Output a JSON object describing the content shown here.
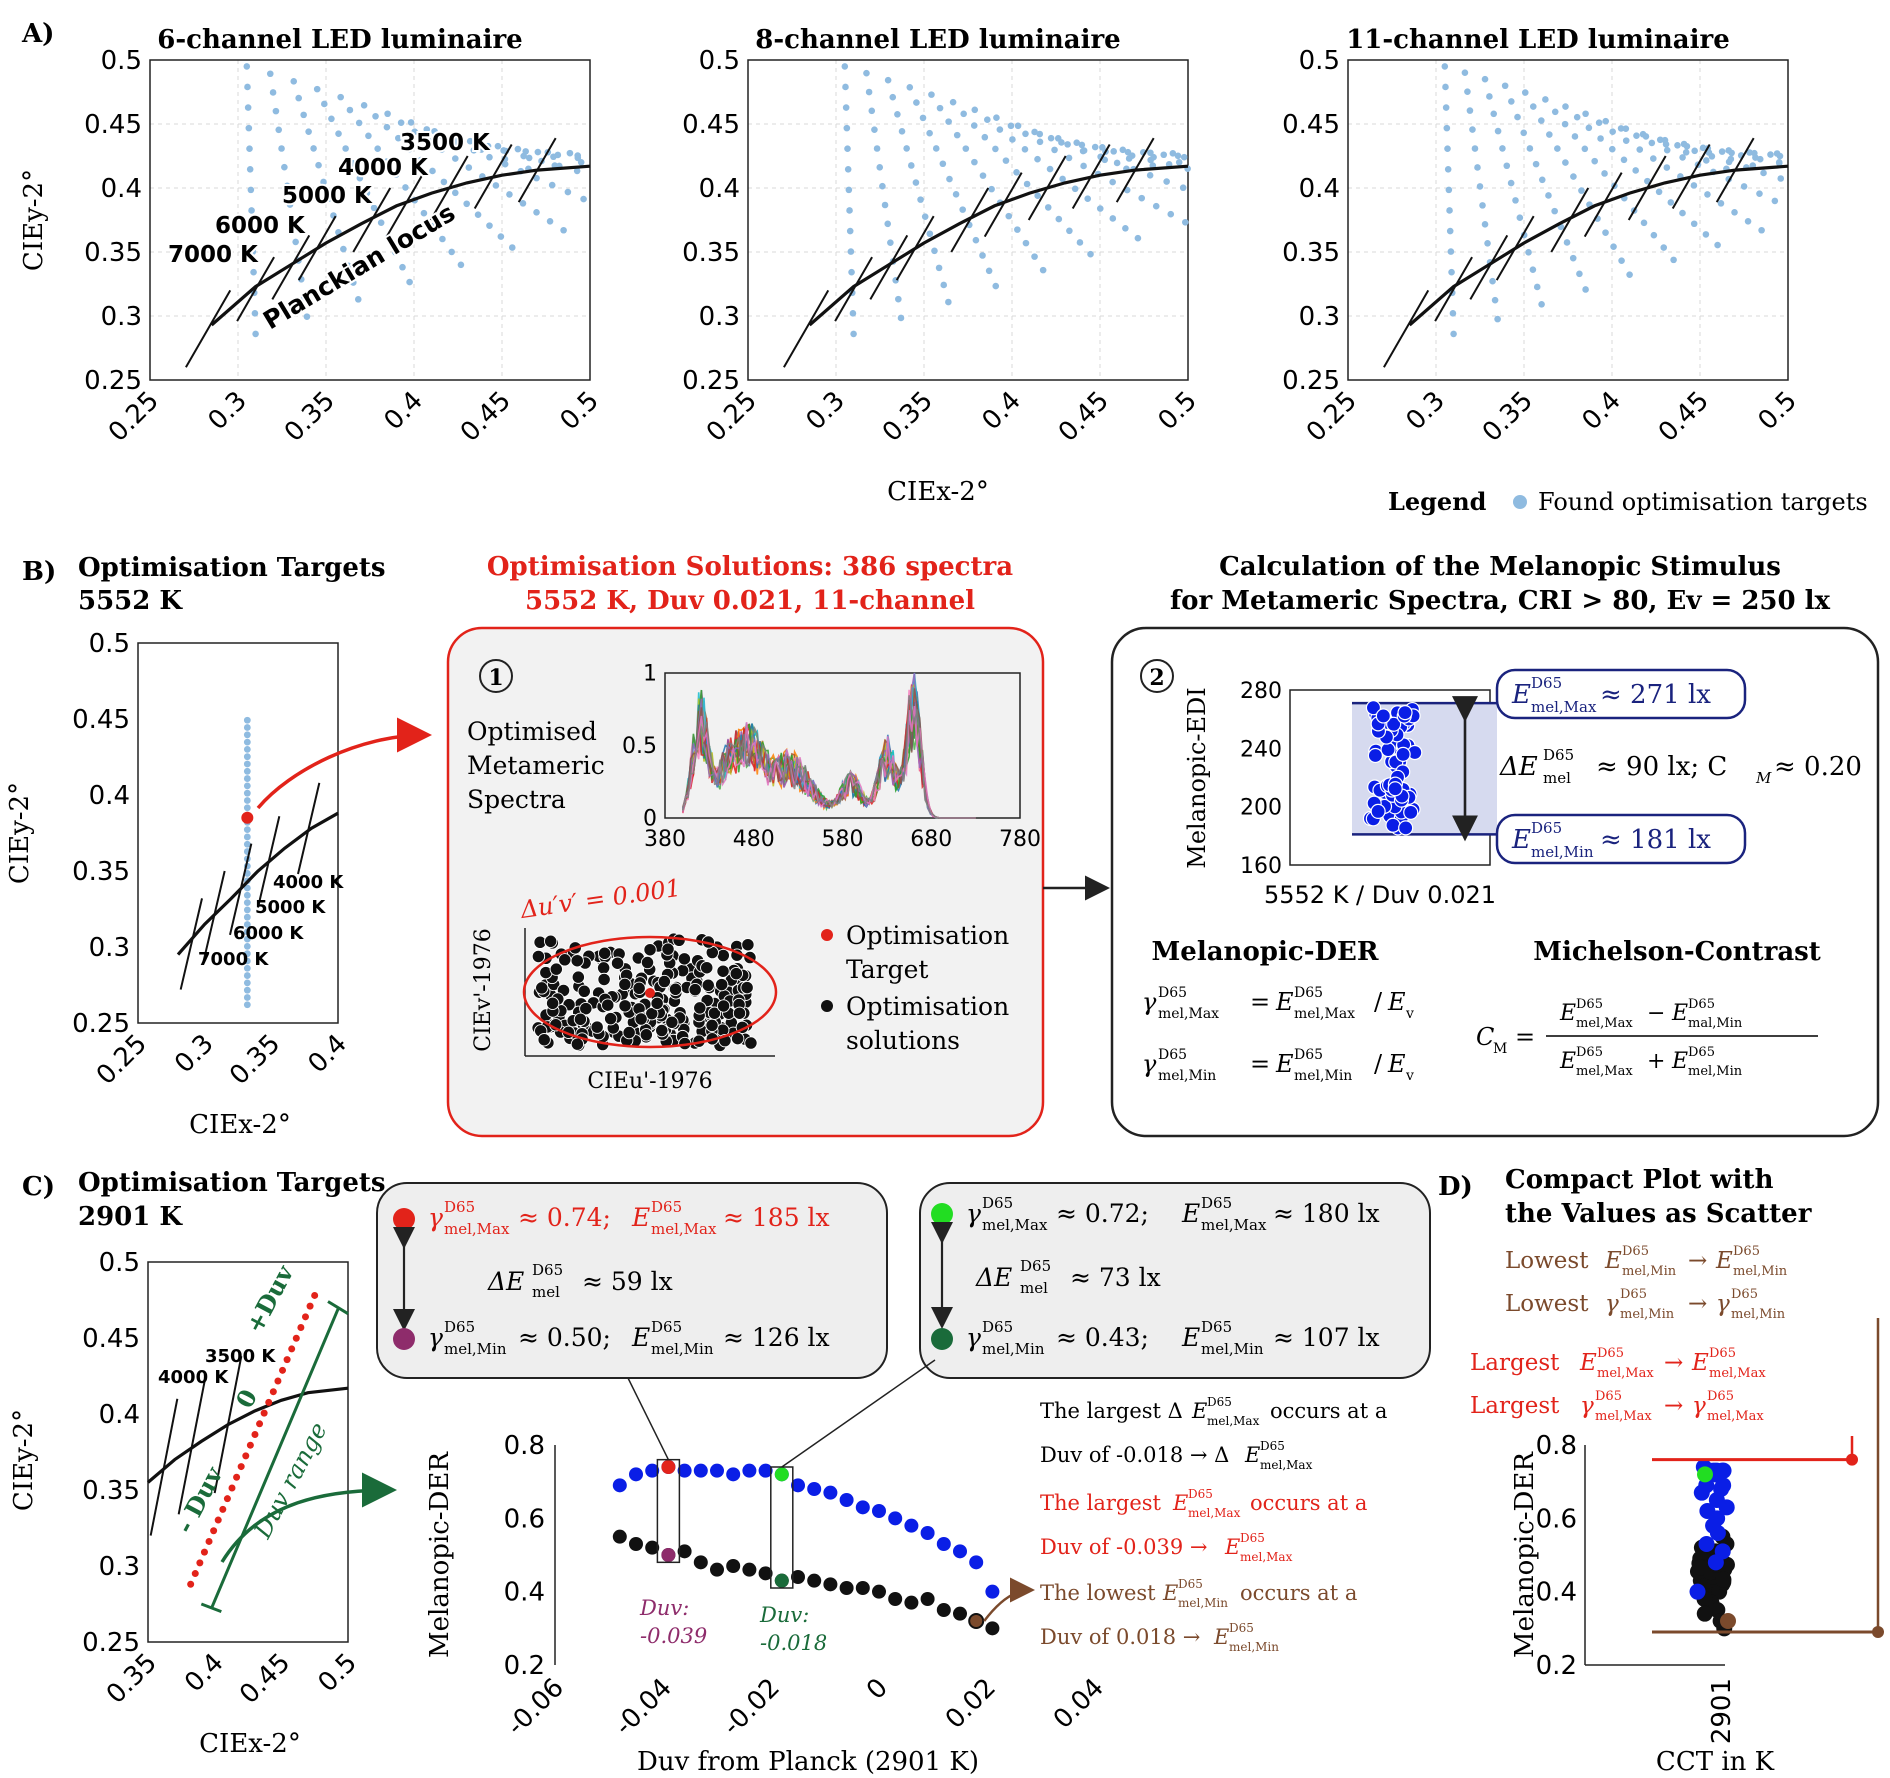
{
  "panel_labels": {
    "a": "A)",
    "b": "B)",
    "c": "C)",
    "d": "D)"
  },
  "colors": {
    "target_blue": "#8fbbe0",
    "red": "#e2231a",
    "dark_blue": "#1a237e",
    "marker_blue": "#0a1ee6",
    "brown": "#7b4a2c",
    "green": "#1a6b3a",
    "bright_green": "#22dd22",
    "purple": "#8e2c6b"
  },
  "chart_data": [
    {
      "id": "A1",
      "type": "scatter",
      "title": "6-channel LED luminaire",
      "xlabel": "",
      "ylabel": "CIEy-2°",
      "xlim": [
        0.25,
        0.5
      ],
      "ylim": [
        0.25,
        0.5
      ],
      "xticks": [
        "0.25",
        "0.3",
        "0.35",
        "0.4",
        "0.45",
        "0.5"
      ],
      "yticks": [
        "0.25",
        "0.3",
        "0.35",
        "0.4",
        "0.45",
        "0.5"
      ],
      "series": [
        {
          "name": "Found optimisation targets"
        },
        {
          "name": "Planckian locus"
        }
      ],
      "annotations": [
        "7000 K",
        "6000 K",
        "5000 K",
        "4000 K",
        "3500 K",
        "Planckian locus"
      ]
    },
    {
      "id": "A2",
      "type": "scatter",
      "title": "8-channel LED luminaire",
      "xlabel": "CIEx-2°",
      "ylabel": "",
      "xlim": [
        0.25,
        0.5
      ],
      "ylim": [
        0.25,
        0.5
      ],
      "xticks": [
        "0.25",
        "0.3",
        "0.35",
        "0.4",
        "0.45",
        "0.5"
      ],
      "yticks": [
        "0.25",
        "0.3",
        "0.35",
        "0.4",
        "0.45",
        "0.5"
      ]
    },
    {
      "id": "A3",
      "type": "scatter",
      "title": "11-channel LED luminaire",
      "xlabel": "",
      "ylabel": "",
      "xlim": [
        0.25,
        0.5
      ],
      "ylim": [
        0.25,
        0.5
      ],
      "xticks": [
        "0.25",
        "0.3",
        "0.35",
        "0.4",
        "0.45",
        "0.5"
      ],
      "yticks": [
        "0.25",
        "0.3",
        "0.35",
        "0.4",
        "0.45",
        "0.5"
      ]
    },
    {
      "id": "B1",
      "type": "scatter",
      "title": "Optimisation Targets",
      "subtitle": "5552 K",
      "xlabel": "CIEx-2°",
      "ylabel": "CIEy-2°",
      "xlim": [
        0.25,
        0.4
      ],
      "ylim": [
        0.25,
        0.5
      ],
      "xticks": [
        "0.25",
        "0.3",
        "0.35",
        "0.4"
      ],
      "yticks": [
        "0.25",
        "0.3",
        "0.35",
        "0.4",
        "0.45",
        "0.5"
      ],
      "annotations": [
        "4000 K",
        "5000 K",
        "6000 K",
        "7000 K"
      ]
    },
    {
      "id": "B_spectra",
      "type": "line",
      "title": "Optimised Metameric Spectra",
      "xlim": [
        380,
        780
      ],
      "ylim": [
        0,
        1
      ],
      "xticks": [
        "380",
        "480",
        "580",
        "680",
        "780"
      ],
      "yticks": [
        "0",
        "0.5",
        "1"
      ]
    },
    {
      "id": "B_uv",
      "type": "scatter",
      "xlabel": "CIEu'-1976",
      "ylabel": "CIEv'-1976",
      "annotation": "Δu′v′ = 0.001",
      "series": [
        {
          "name": "Optimisation Target"
        },
        {
          "name": "Optimisation solutions"
        }
      ]
    },
    {
      "id": "B_edi",
      "type": "scatter",
      "xlabel": "5552 K / Duv 0.021",
      "ylabel": "Melanopic-EDI",
      "ylim": [
        160,
        280
      ],
      "yticks": [
        "160",
        "200",
        "240",
        "280"
      ],
      "max_value": 271,
      "min_value": 181,
      "delta": 90,
      "cm": 0.2
    },
    {
      "id": "C1",
      "type": "scatter",
      "title": "Optimisation Targets",
      "subtitle": "2901 K",
      "xlabel": "CIEx-2°",
      "ylabel": "CIEy-2°",
      "xlim": [
        0.35,
        0.5
      ],
      "ylim": [
        0.25,
        0.5
      ],
      "xticks": [
        "0.35",
        "0.4",
        "0.45",
        "0.5"
      ],
      "yticks": [
        "0.25",
        "0.3",
        "0.35",
        "0.4",
        "0.45",
        "0.5"
      ],
      "annotations": [
        "3500 K",
        "4000 K",
        "+Duv",
        "0",
        "- Duv",
        "Duv range"
      ]
    },
    {
      "id": "C2",
      "type": "scatter",
      "xlabel": "Duv from Planck (2901 K)",
      "ylabel": "Melanopic-DER",
      "xlim": [
        -0.06,
        0.04
      ],
      "ylim": [
        0.2,
        0.8
      ],
      "xticks": [
        "-0.06",
        "-0.04",
        "-0.02",
        "0",
        "0.02",
        "0.04"
      ],
      "yticks": [
        "0.2",
        "0.4",
        "0.6",
        "0.8"
      ],
      "series": [
        {
          "name": "gamma_max",
          "x": [
            -0.048,
            -0.045,
            -0.042,
            -0.039,
            -0.036,
            -0.033,
            -0.03,
            -0.027,
            -0.024,
            -0.021,
            -0.018,
            -0.015,
            -0.012,
            -0.009,
            -0.006,
            -0.003,
            0.0,
            0.003,
            0.006,
            0.009,
            0.012,
            0.015,
            0.018,
            0.021
          ],
          "y": [
            0.69,
            0.72,
            0.73,
            0.74,
            0.73,
            0.73,
            0.73,
            0.72,
            0.73,
            0.73,
            0.72,
            0.69,
            0.68,
            0.67,
            0.65,
            0.63,
            0.62,
            0.6,
            0.58,
            0.56,
            0.53,
            0.51,
            0.48,
            0.4
          ]
        },
        {
          "name": "gamma_min",
          "x": [
            -0.048,
            -0.045,
            -0.042,
            -0.039,
            -0.036,
            -0.033,
            -0.03,
            -0.027,
            -0.024,
            -0.021,
            -0.018,
            -0.015,
            -0.012,
            -0.009,
            -0.006,
            -0.003,
            0.0,
            0.003,
            0.006,
            0.009,
            0.012,
            0.015,
            0.018,
            0.021
          ],
          "y": [
            0.55,
            0.53,
            0.52,
            0.5,
            0.51,
            0.48,
            0.46,
            0.47,
            0.46,
            0.45,
            0.43,
            0.44,
            0.43,
            0.42,
            0.41,
            0.41,
            0.4,
            0.38,
            0.37,
            0.38,
            0.35,
            0.34,
            0.32,
            0.3
          ]
        }
      ],
      "highlight_labels": [
        "Duv:",
        "-0.039",
        "Duv:",
        "-0.018"
      ]
    },
    {
      "id": "D",
      "type": "scatter",
      "title": "Compact Plot with",
      "subtitle": "the Values as Scatter",
      "xlabel": "CCT in K",
      "ylabel": "Melanopic-DER",
      "ylim": [
        0.2,
        0.8
      ],
      "xticks": [
        "2901"
      ],
      "yticks": [
        "0.2",
        "0.4",
        "0.6",
        "0.8"
      ]
    }
  ],
  "legend": {
    "label": "Legend",
    "entry": "Found optimisation targets"
  },
  "panel_b": {
    "solutions_title": "Optimisation Solutions: 386 spectra",
    "solutions_subtitle": "5552 K, Duv 0.021, 11-channel",
    "calc_title": "Calculation of the Melanopic Stimulus",
    "calc_subtitle": "for Metameric Spectra, CRI > 80, Ev = 250 lx",
    "step1": "1",
    "step2": "2",
    "spectra_label_1": "Optimised",
    "spectra_label_2": "Metameric",
    "spectra_label_3": "Spectra",
    "legend_target_1": "Optimisation",
    "legend_target_2": "Target",
    "legend_solutions_1": "Optimisation",
    "legend_solutions_2": "solutions",
    "max_box": "≈ 271 lx",
    "min_box": "≈ 181 lx",
    "delta_text": "≈ 90 lx; C",
    "delta_text_2": "≈ 0.20",
    "der_title": "Melanopic-DER",
    "michelson_title": "Michelson-Contrast",
    "sym_E": "E",
    "sym_gamma": "γ",
    "sup_d65": "D65",
    "sub_max": "mel,Max",
    "sub_min": "mel,Min",
    "sub_mel": "mel",
    "sub_mal_min": "mal,Min",
    "sub_m": "M",
    "sub_M": "M",
    "sub_v": "v"
  },
  "panel_c": {
    "box1_max": "≈ 0.74;",
    "box1_max_e": "≈ 185 lx",
    "box1_delta": "≈ 59 lx",
    "box1_min": "≈ 0.50;",
    "box1_min_e": "≈ 126 lx",
    "box2_max": "≈ 0.72;",
    "box2_max_e": "≈ 180 lx",
    "box2_delta": "≈ 73 lx",
    "box2_min": "≈ 0.43;",
    "box2_min_e": "≈ 107 lx",
    "note1_a": "The largest Δ",
    "note1_b": "occurs at a",
    "note1_c": "Duv of -0.018 → Δ",
    "note2_a": "The largest",
    "note2_b": "occurs at a",
    "note2_c": "Duv of -0.039 →",
    "note3_a": "The lowest",
    "note3_b": "occurs at a",
    "note3_c": "Duv of 0.018 →"
  },
  "panel_d": {
    "lowest_1": "Lowest",
    "lowest_2": "Lowest",
    "largest_1": "Largest",
    "largest_2": "Largest",
    "arrow": "→"
  }
}
